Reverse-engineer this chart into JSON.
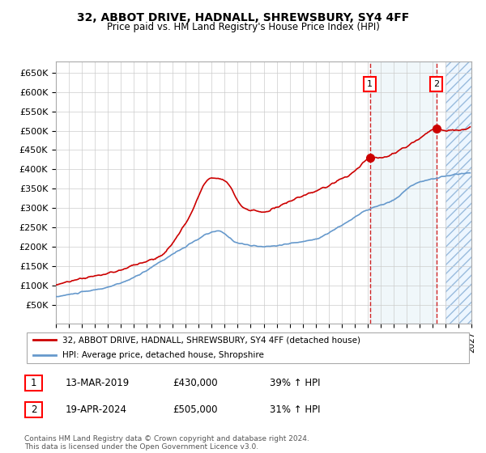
{
  "title": "32, ABBOT DRIVE, HADNALL, SHREWSBURY, SY4 4FF",
  "subtitle": "Price paid vs. HM Land Registry's House Price Index (HPI)",
  "ylim": [
    0,
    680000
  ],
  "yticks": [
    50000,
    100000,
    150000,
    200000,
    250000,
    300000,
    350000,
    400000,
    450000,
    500000,
    550000,
    600000,
    650000
  ],
  "ytick_labels": [
    "£50K",
    "£100K",
    "£150K",
    "£200K",
    "£250K",
    "£300K",
    "£350K",
    "£400K",
    "£450K",
    "£500K",
    "£550K",
    "£600K",
    "£650K"
  ],
  "sale1_date": 2019.19,
  "sale1_price": 430000,
  "sale1_label": "1",
  "sale1_date_str": "13-MAR-2019",
  "sale1_pct": "39% ↑ HPI",
  "sale2_date": 2024.29,
  "sale2_price": 505000,
  "sale2_label": "2",
  "sale2_date_str": "19-APR-2024",
  "sale2_pct": "31% ↑ HPI",
  "red_color": "#cc0000",
  "blue_color": "#6699cc",
  "legend_label1": "32, ABBOT DRIVE, HADNALL, SHREWSBURY, SY4 4FF (detached house)",
  "legend_label2": "HPI: Average price, detached house, Shropshire",
  "footer": "Contains HM Land Registry data © Crown copyright and database right 2024.\nThis data is licensed under the Open Government Licence v3.0.",
  "background_color": "#ffffff",
  "grid_color": "#cccccc",
  "future_start": 2025.0,
  "xlim_start": 1995,
  "xlim_end": 2027
}
